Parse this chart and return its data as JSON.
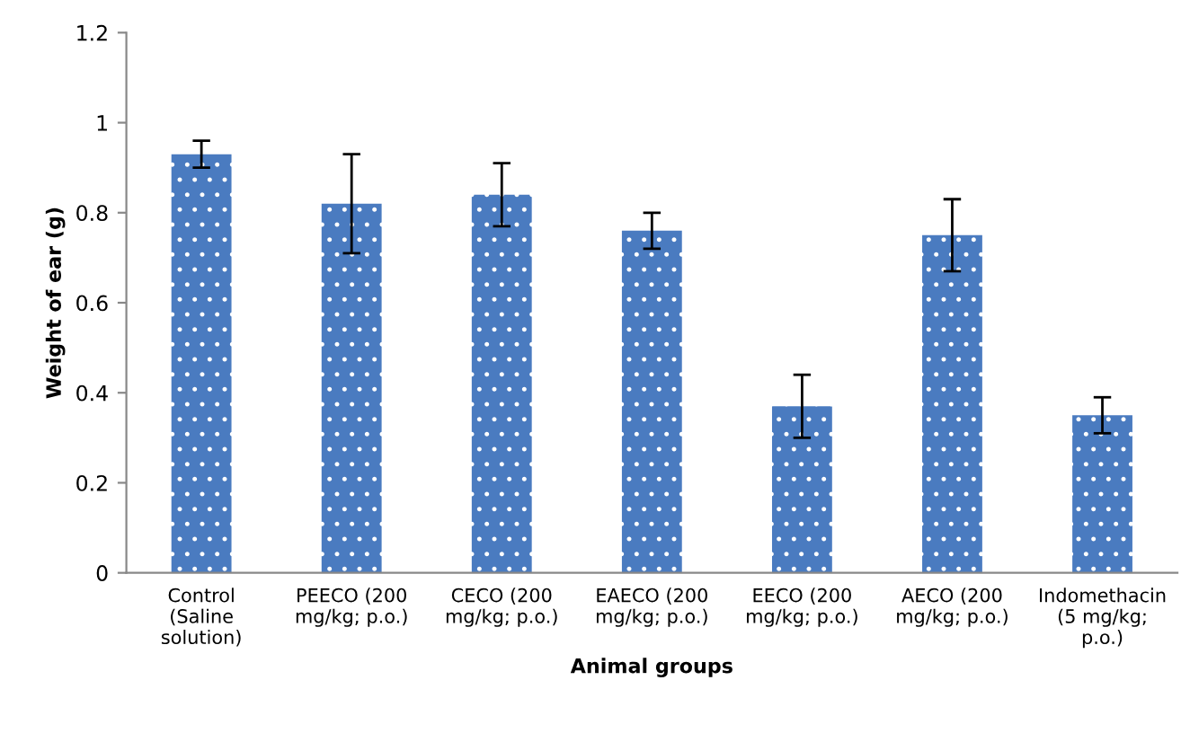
{
  "chart_data": {
    "type": "bar",
    "xlabel": "Animal groups",
    "ylabel": "Weight of ear (g)",
    "categories": [
      "Control\n(Saline\nsolution)",
      "PEECO (200\nmg/kg; p.o.)",
      "CECO (200\nmg/kg; p.o.)",
      "EAECO (200\nmg/kg; p.o.)",
      "EECO (200\nmg/kg; p.o.)",
      "AECO (200\nmg/kg; p.o.)",
      "Indomethacin\n(5 mg/kg;\np.o.)"
    ],
    "values": [
      0.93,
      0.82,
      0.84,
      0.76,
      0.37,
      0.75,
      0.35
    ],
    "errors": [
      0.03,
      0.11,
      0.07,
      0.04,
      0.07,
      0.08,
      0.04
    ],
    "color": "#4a7bc0",
    "ylim": [
      0,
      1.2
    ],
    "yticks": [
      0,
      0.2,
      0.4,
      0.6,
      0.8,
      1,
      1.2
    ],
    "grid": false,
    "legend": false
  }
}
